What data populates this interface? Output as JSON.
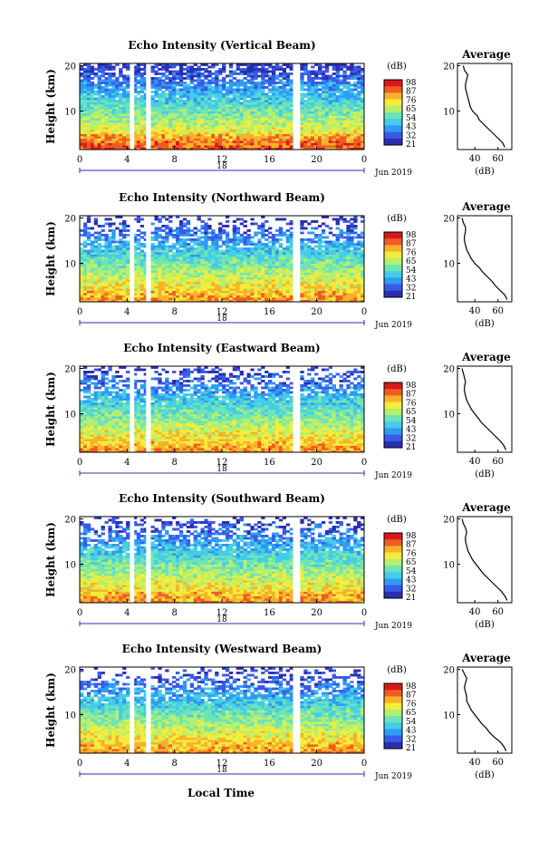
{
  "figure": {
    "x_axis_label": "Local Time",
    "colorbar_unit": "(dB)",
    "colorbar_ticks": [
      "98",
      "87",
      "76",
      "65",
      "54",
      "43",
      "32",
      "21"
    ],
    "avg_title": "Average",
    "avg_xlabel": "(dB)",
    "ylabel": "Height (km)"
  },
  "chart_data": [
    {
      "type": "heatmap",
      "title": "Echo Intensity (Vertical Beam)",
      "ylabel": "Height (km)",
      "xlabel": "Local Time",
      "x_ticks": [
        "0",
        "4",
        "8",
        "12",
        "16",
        "20",
        "0"
      ],
      "y_ticks": [
        "20",
        "10"
      ],
      "date_label": "18",
      "date_suffix": "Jun 2019",
      "xlim": [
        0,
        24
      ],
      "ylim": [
        1.5,
        20.5
      ],
      "data_gaps_hours": [
        [
          4.3,
          4.6
        ],
        [
          5.6,
          5.9
        ],
        [
          18.0,
          18.5
        ]
      ],
      "colorbar": {
        "label": "(dB)",
        "ticks": [
          98,
          87,
          76,
          65,
          54,
          43,
          32,
          21
        ],
        "colors": [
          "#2b2fae",
          "#3a5ae8",
          "#2f9bf2",
          "#44cce8",
          "#6ee4b5",
          "#b4ef6f",
          "#f4ec3c",
          "#f7b22b",
          "#ef5d22",
          "#d7191c"
        ]
      },
      "profile": {
        "title": "Average",
        "xlabel": "(dB)",
        "x_ticks": [
          "40",
          "60"
        ],
        "y_ticks": [
          "20",
          "10"
        ],
        "xlim": [
          25,
          72
        ],
        "ylim": [
          1.5,
          20.5
        ],
        "heights": [
          2,
          3,
          4,
          5,
          6,
          7,
          8,
          9,
          10,
          11,
          12,
          13,
          14,
          15,
          16,
          17,
          18,
          19,
          20
        ],
        "values": [
          66,
          64,
          60,
          56,
          52,
          48,
          44,
          42,
          38,
          36,
          35,
          34,
          33,
          32,
          32,
          33,
          34,
          31,
          30
        ]
      }
    },
    {
      "type": "heatmap",
      "title": "Echo Intensity (Northward Beam)",
      "ylabel": "Height (km)",
      "xlabel": "Local Time",
      "x_ticks": [
        "0",
        "4",
        "8",
        "12",
        "16",
        "20",
        "0"
      ],
      "y_ticks": [
        "20",
        "10"
      ],
      "date_label": "18",
      "date_suffix": "Jun 2019",
      "xlim": [
        0,
        24
      ],
      "ylim": [
        1.5,
        20.5
      ],
      "data_gaps_hours": [
        [
          4.3,
          4.6
        ],
        [
          5.6,
          5.9
        ],
        [
          18.0,
          18.5
        ]
      ],
      "colorbar": {
        "label": "(dB)",
        "ticks": [
          98,
          87,
          76,
          65,
          54,
          43,
          32,
          21
        ]
      },
      "profile": {
        "title": "Average",
        "xlabel": "(dB)",
        "x_ticks": [
          "40",
          "60"
        ],
        "y_ticks": [
          "20",
          "10"
        ],
        "xlim": [
          25,
          72
        ],
        "ylim": [
          1.5,
          20.5
        ],
        "heights": [
          2,
          3,
          4,
          5,
          6,
          7,
          8,
          9,
          10,
          11,
          12,
          13,
          14,
          15,
          16,
          17,
          18,
          19,
          20
        ],
        "values": [
          68,
          66,
          62,
          58,
          55,
          51,
          47,
          44,
          40,
          37,
          35,
          33,
          32,
          31,
          31,
          32,
          32,
          30,
          29
        ]
      }
    },
    {
      "type": "heatmap",
      "title": "Echo Intensity (Eastward Beam)",
      "ylabel": "Height (km)",
      "xlabel": "Local Time",
      "x_ticks": [
        "0",
        "4",
        "8",
        "12",
        "16",
        "20",
        "0"
      ],
      "y_ticks": [
        "20",
        "10"
      ],
      "date_label": "18",
      "date_suffix": "Jun 2019",
      "xlim": [
        0,
        24
      ],
      "ylim": [
        1.5,
        20.5
      ],
      "data_gaps_hours": [
        [
          4.3,
          4.6
        ],
        [
          5.6,
          5.9
        ],
        [
          18.0,
          18.5
        ]
      ],
      "colorbar": {
        "label": "(dB)",
        "ticks": [
          98,
          87,
          76,
          65,
          54,
          43,
          32,
          21
        ]
      },
      "profile": {
        "title": "Average",
        "xlabel": "(dB)",
        "x_ticks": [
          "40",
          "60"
        ],
        "y_ticks": [
          "20",
          "10"
        ],
        "xlim": [
          25,
          72
        ],
        "ylim": [
          1.5,
          20.5
        ],
        "heights": [
          2,
          3,
          4,
          5,
          6,
          7,
          8,
          9,
          10,
          11,
          12,
          13,
          14,
          15,
          16,
          17,
          18,
          19,
          20
        ],
        "values": [
          67,
          65,
          62,
          58,
          54,
          50,
          46,
          43,
          40,
          37,
          35,
          33,
          32,
          31,
          31,
          32,
          31,
          30,
          29
        ]
      }
    },
    {
      "type": "heatmap",
      "title": "Echo Intensity (Southward Beam)",
      "ylabel": "Height (km)",
      "xlabel": "Local Time",
      "x_ticks": [
        "0",
        "4",
        "8",
        "12",
        "16",
        "20",
        "0"
      ],
      "y_ticks": [
        "20",
        "10"
      ],
      "date_label": "18",
      "date_suffix": "Jun 2019",
      "xlim": [
        0,
        24
      ],
      "ylim": [
        1.5,
        20.5
      ],
      "data_gaps_hours": [
        [
          4.3,
          4.6
        ],
        [
          5.6,
          5.9
        ],
        [
          18.0,
          18.5
        ]
      ],
      "colorbar": {
        "label": "(dB)",
        "ticks": [
          98,
          87,
          76,
          65,
          54,
          43,
          32,
          21
        ]
      },
      "profile": {
        "title": "Average",
        "xlabel": "(dB)",
        "x_ticks": [
          "40",
          "60"
        ],
        "y_ticks": [
          "20",
          "10"
        ],
        "xlim": [
          25,
          72
        ],
        "ylim": [
          1.5,
          20.5
        ],
        "heights": [
          2,
          3,
          4,
          5,
          6,
          7,
          8,
          9,
          10,
          11,
          12,
          13,
          14,
          15,
          16,
          17,
          18,
          19,
          20
        ],
        "values": [
          68,
          66,
          63,
          59,
          55,
          51,
          47,
          44,
          41,
          38,
          36,
          34,
          33,
          32,
          32,
          33,
          32,
          30,
          29
        ]
      }
    },
    {
      "type": "heatmap",
      "title": "Echo Intensity (Westward Beam)",
      "ylabel": "Height (km)",
      "xlabel": "Local Time",
      "x_ticks": [
        "0",
        "4",
        "8",
        "12",
        "16",
        "20",
        "0"
      ],
      "y_ticks": [
        "20",
        "10"
      ],
      "date_label": "18",
      "date_suffix": "Jun 2019",
      "xlim": [
        0,
        24
      ],
      "ylim": [
        1.5,
        20.5
      ],
      "data_gaps_hours": [
        [
          4.3,
          4.6
        ],
        [
          5.6,
          5.9
        ],
        [
          18.0,
          18.5
        ]
      ],
      "colorbar": {
        "label": "(dB)",
        "ticks": [
          98,
          87,
          76,
          65,
          54,
          43,
          32,
          21
        ]
      },
      "profile": {
        "title": "Average",
        "xlabel": "(dB)",
        "x_ticks": [
          "40",
          "60"
        ],
        "y_ticks": [
          "20",
          "10"
        ],
        "xlim": [
          25,
          72
        ],
        "ylim": [
          1.5,
          20.5
        ],
        "heights": [
          2,
          3,
          4,
          5,
          6,
          7,
          8,
          9,
          10,
          11,
          12,
          13,
          14,
          15,
          16,
          17,
          18,
          19,
          20
        ],
        "values": [
          67,
          65,
          62,
          57,
          53,
          50,
          46,
          43,
          40,
          37,
          35,
          33,
          33,
          32,
          31,
          32,
          33,
          31,
          29
        ]
      }
    }
  ]
}
